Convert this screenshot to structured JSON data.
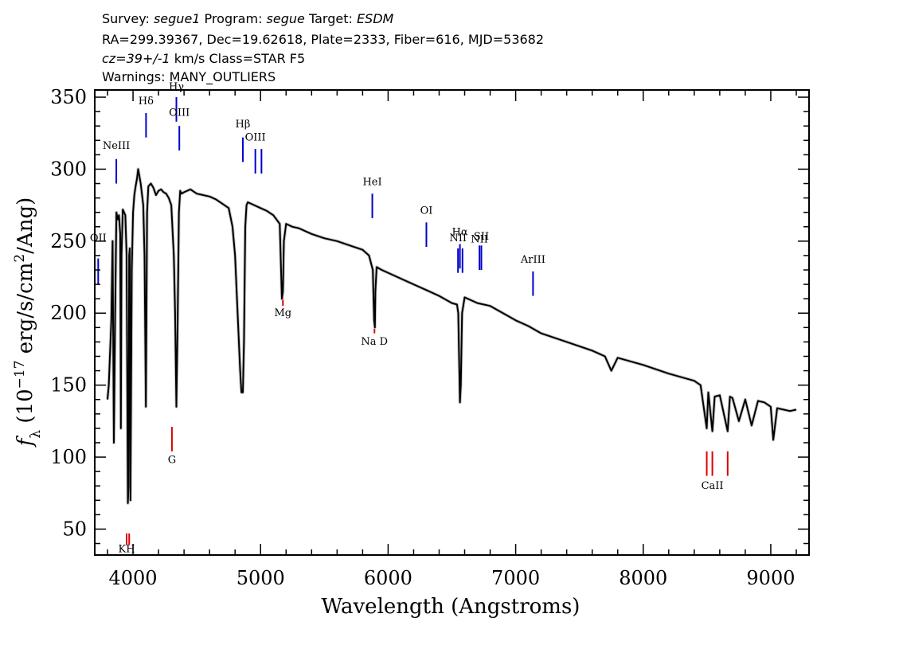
{
  "header": {
    "line1": [
      {
        "text": "Survey: ",
        "italic": false
      },
      {
        "text": "segue1",
        "italic": true
      },
      {
        "text": " Program: ",
        "italic": false
      },
      {
        "text": "segue",
        "italic": true
      },
      {
        "text": " Target: ",
        "italic": false
      },
      {
        "text": "ESDM",
        "italic": true
      }
    ],
    "line2": "RA=299.39367, Dec=19.62618, Plate=2333, Fiber=616, MJD=53682",
    "line3": [
      {
        "text": "cz=39+/-1",
        "italic": true
      },
      {
        "text": " km/s Class=STAR F5",
        "italic": false
      }
    ],
    "line4": "Warnings: MANY_OUTLIERS"
  },
  "chart_data": {
    "type": "line",
    "xlabel": "Wavelength (Angstroms)",
    "ylabel": "f_λ (10^-17 erg/s/cm^2/Ang)",
    "xlim": [
      3700,
      9300
    ],
    "ylim": [
      32,
      355
    ],
    "xticks": [
      4000,
      5000,
      6000,
      7000,
      8000,
      9000
    ],
    "yticks": [
      50,
      100,
      150,
      200,
      250,
      300,
      350
    ],
    "grid": false,
    "series": [
      {
        "color": "#000000",
        "x": [
          3800,
          3810,
          3830,
          3840,
          3850,
          3860,
          3870,
          3880,
          3890,
          3900,
          3905,
          3910,
          3920,
          3930,
          3940,
          3950,
          3960,
          3965,
          3970,
          3975,
          3980,
          3990,
          4000,
          4010,
          4020,
          4030,
          4040,
          4060,
          4080,
          4090,
          4101,
          4110,
          4120,
          4140,
          4160,
          4180,
          4200,
          4220,
          4240,
          4260,
          4280,
          4300,
          4320,
          4330,
          4340,
          4350,
          4360,
          4370,
          4380,
          4400,
          4450,
          4500,
          4550,
          4600,
          4650,
          4700,
          4750,
          4780,
          4800,
          4820,
          4840,
          4850,
          4861,
          4870,
          4880,
          4890,
          4900,
          4950,
          5000,
          5050,
          5100,
          5150,
          5167,
          5175,
          5183,
          5200,
          5250,
          5300,
          5400,
          5500,
          5600,
          5700,
          5800,
          5850,
          5880,
          5890,
          5896,
          5900,
          5910,
          5950,
          6000,
          6100,
          6200,
          6300,
          6400,
          6500,
          6540,
          6550,
          6563,
          6570,
          6580,
          6600,
          6650,
          6700,
          6800,
          6900,
          7000,
          7100,
          7200,
          7400,
          7600,
          7700,
          7750,
          7800,
          8000,
          8200,
          8400,
          8450,
          8498,
          8510,
          8542,
          8560,
          8600,
          8662,
          8680,
          8700,
          8750,
          8800,
          8850,
          8900,
          8950,
          9000,
          9020,
          9050,
          9100,
          9150,
          9200
        ],
        "y": [
          140,
          150,
          195,
          250,
          110,
          200,
          270,
          265,
          268,
          255,
          120,
          240,
          272,
          270,
          268,
          240,
          68,
          80,
          240,
          245,
          70,
          230,
          270,
          282,
          288,
          293,
          300,
          290,
          275,
          240,
          135,
          270,
          288,
          290,
          287,
          282,
          285,
          286,
          284,
          283,
          280,
          275,
          240,
          200,
          135,
          195,
          270,
          285,
          283,
          284,
          286,
          283,
          282,
          281,
          279,
          276,
          273,
          260,
          240,
          200,
          160,
          145,
          145,
          180,
          260,
          275,
          277,
          275,
          273,
          271,
          268,
          262,
          210,
          215,
          250,
          262,
          260,
          259,
          255,
          252,
          250,
          247,
          244,
          240,
          230,
          195,
          190,
          215,
          232,
          230,
          228,
          224,
          220,
          216,
          212,
          207,
          206,
          200,
          138,
          150,
          200,
          211,
          209,
          207,
          205,
          200,
          195,
          191,
          186,
          180,
          174,
          170,
          160,
          169,
          164,
          158,
          153,
          150,
          120,
          145,
          118,
          142,
          143,
          118,
          142,
          141,
          125,
          140,
          122,
          139,
          138,
          135,
          112,
          134,
          133,
          132,
          133
        ]
      }
    ],
    "annotations": [
      {
        "label": "OII",
        "x": 3727,
        "color": "#0000cc",
        "y_top": 238,
        "y_bottom": 220,
        "label_y": 250
      },
      {
        "label": "NeIII",
        "x": 3869,
        "color": "#0000cc",
        "y_top": 307,
        "y_bottom": 290,
        "label_y": 314
      },
      {
        "label": "Hδ",
        "x": 4102,
        "color": "#0000cc",
        "y_top": 339,
        "y_bottom": 322,
        "label_y": 345
      },
      {
        "label": "Hγ",
        "x": 4340,
        "color": "#0000cc",
        "y_top": 350,
        "y_bottom": 333,
        "label_y": 355
      },
      {
        "label": "OIII",
        "x": 4363,
        "color": "#0000cc",
        "y_top": 330,
        "y_bottom": 313,
        "label_y": 337
      },
      {
        "label": "Hβ",
        "x": 4861,
        "color": "#0000cc",
        "y_top": 322,
        "y_bottom": 305,
        "label_y": 329
      },
      {
        "label": "OIII",
        "x": 4959,
        "color": "#0000cc",
        "y_top": 314,
        "y_bottom": 297,
        "label_y": 320
      },
      {
        "label": "",
        "x": 5007,
        "color": "#0000cc",
        "y_top": 314,
        "y_bottom": 297,
        "label_y": 320
      },
      {
        "label": "HeI",
        "x": 5876,
        "color": "#0000cc",
        "y_top": 283,
        "y_bottom": 266,
        "label_y": 289
      },
      {
        "label": "OI",
        "x": 6300,
        "color": "#0000cc",
        "y_top": 263,
        "y_bottom": 246,
        "label_y": 269
      },
      {
        "label": "NII",
        "x": 6548,
        "color": "#0000cc",
        "y_top": 245,
        "y_bottom": 228,
        "label_y": 250
      },
      {
        "label": "Hα",
        "x": 6563,
        "color": "#0000cc",
        "y_top": 248,
        "y_bottom": 231,
        "label_y": 254
      },
      {
        "label": "",
        "x": 6583,
        "color": "#0000cc",
        "y_top": 245,
        "y_bottom": 228,
        "label_y": 250
      },
      {
        "label": "NII",
        "x": 6716,
        "color": "#0000cc",
        "y_top": 247,
        "y_bottom": 230,
        "label_y": 249
      },
      {
        "label": "SII",
        "x": 6731,
        "color": "#0000cc",
        "y_top": 247,
        "y_bottom": 230,
        "label_y": 251
      },
      {
        "label": "ArIII",
        "x": 7136,
        "color": "#0000cc",
        "y_top": 229,
        "y_bottom": 212,
        "label_y": 235
      },
      {
        "label": "Mg",
        "x": 5175,
        "color": "#dd0000",
        "y_top": 222,
        "y_bottom": 205,
        "label_y": 198
      },
      {
        "label": "Na  D",
        "x": 5893,
        "color": "#dd0000",
        "y_top": 203,
        "y_bottom": 186,
        "label_y": 178
      },
      {
        "label": "G",
        "x": 4305,
        "color": "#dd0000",
        "y_top": 121,
        "y_bottom": 104,
        "label_y": 96
      },
      {
        "label": "KH",
        "x": 3950,
        "color": "#dd0000",
        "y_top": 47,
        "y_bottom": 39,
        "label_y": 34
      },
      {
        "label": "",
        "x": 3970,
        "color": "#dd0000",
        "y_top": 47,
        "y_bottom": 39,
        "label_y": 34
      },
      {
        "label": "CaII",
        "x": 8542,
        "color": "#dd0000",
        "y_top": 104,
        "y_bottom": 87,
        "label_y": 78
      },
      {
        "label": "",
        "x": 8498,
        "color": "#dd0000",
        "y_top": 104,
        "y_bottom": 87,
        "label_y": 78
      },
      {
        "label": "",
        "x": 8662,
        "color": "#dd0000",
        "y_top": 104,
        "y_bottom": 87,
        "label_y": 78
      }
    ]
  }
}
